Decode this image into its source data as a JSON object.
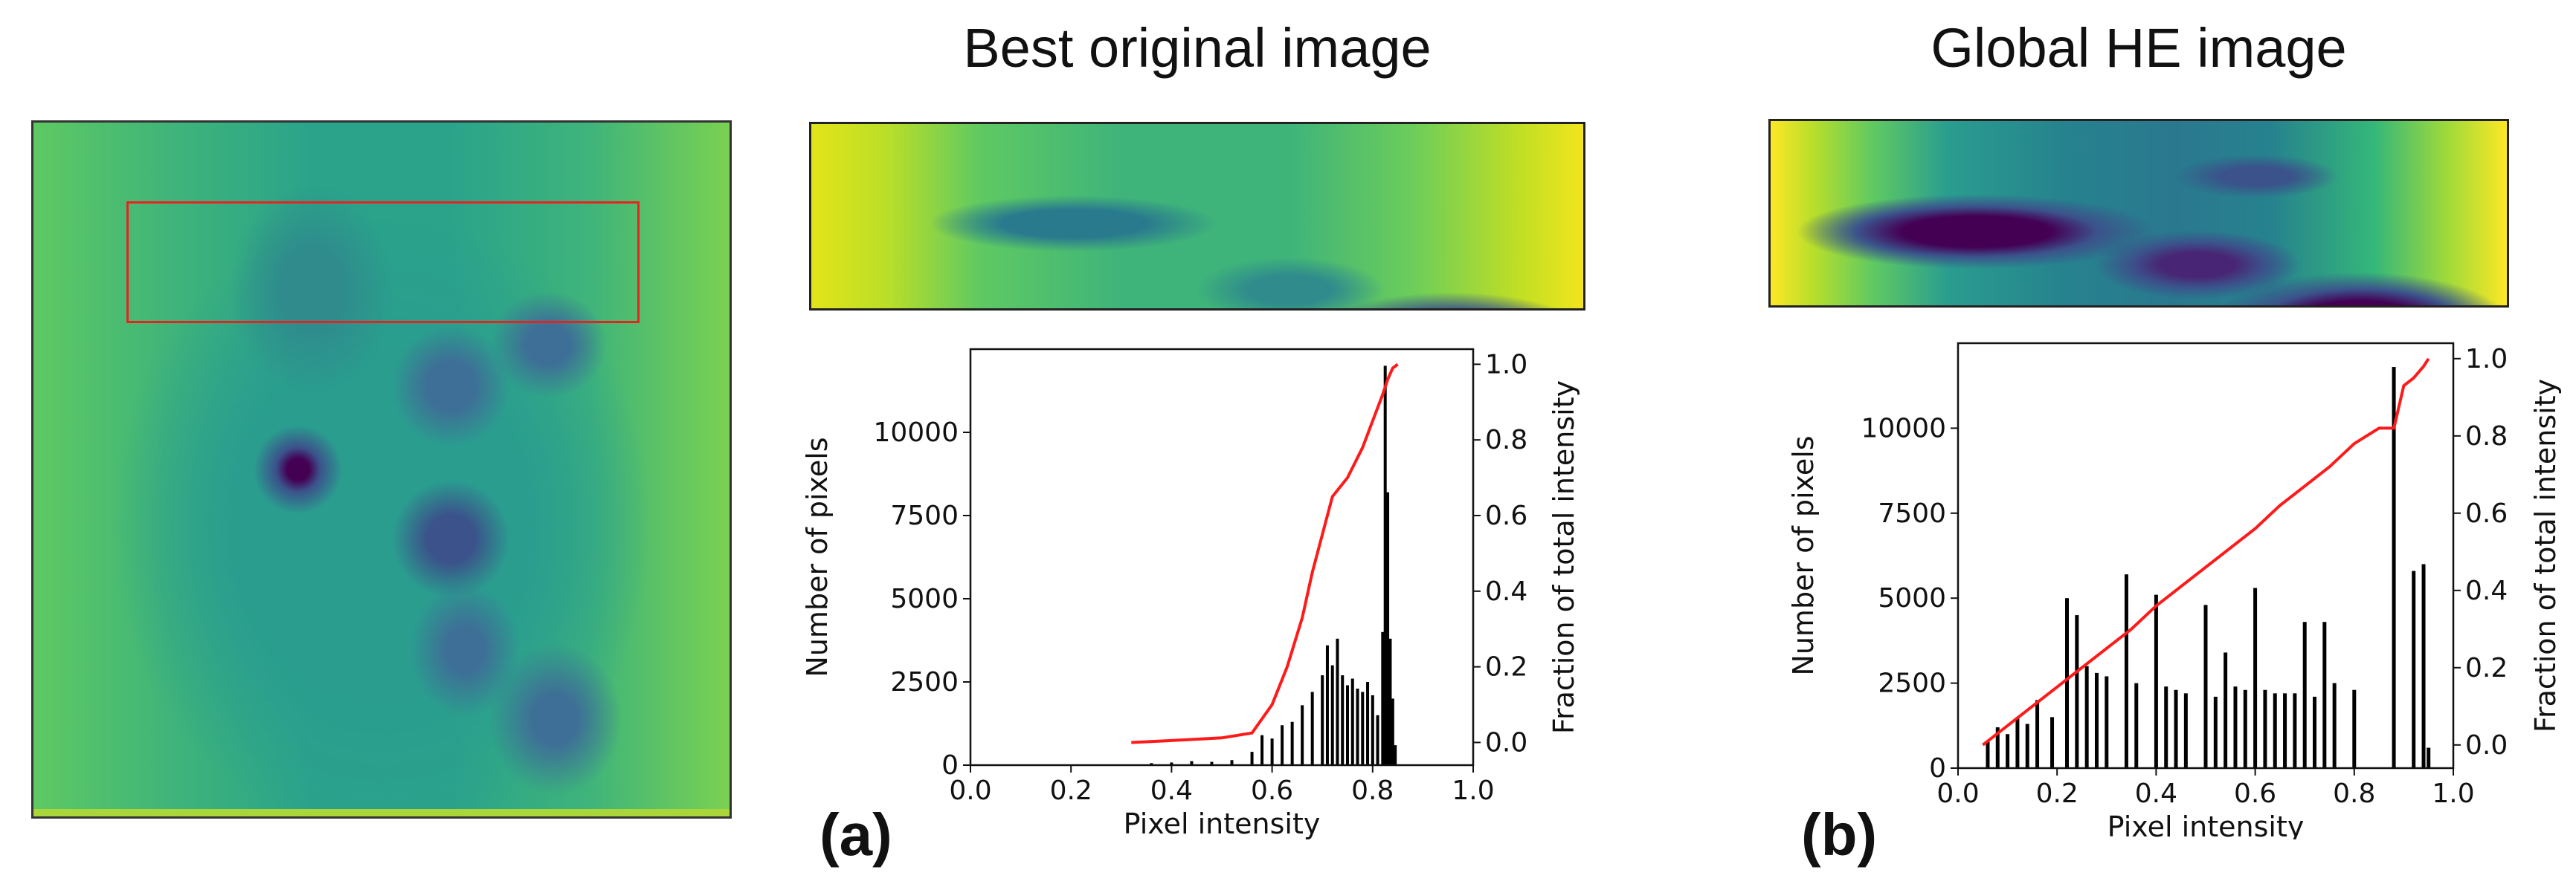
{
  "titles": {
    "a": "Best original image",
    "b": "Global HE image"
  },
  "panel_labels": {
    "a": "(a)",
    "b": "(b)"
  },
  "colors": {
    "cumulative_line": "#ff1a1a",
    "bars": "#000000",
    "roi_box": "#e8231f",
    "viridis_yellow": "#dfe318",
    "viridis_green": "#7ad151",
    "viridis_teal": "#2a9d8f",
    "viridis_blue": "#31688e",
    "viridis_purple": "#440154"
  },
  "chart_data": [
    {
      "id": "a",
      "type": "bar",
      "xlabel": "Pixel intensity",
      "ylabel": "Number of pixels",
      "y2label": "Fraction of total intensity",
      "xlim": [
        0.0,
        1.0
      ],
      "ylim": [
        0,
        12500
      ],
      "y2lim": [
        -0.06,
        1.04
      ],
      "xticks": [
        "0.0",
        "0.2",
        "0.4",
        "0.6",
        "0.8",
        "1.0"
      ],
      "yticks": [
        "0",
        "2500",
        "5000",
        "7500",
        "10000"
      ],
      "y2ticks": [
        "0.0",
        "0.2",
        "0.4",
        "0.6",
        "0.8",
        "1.0"
      ],
      "grid": false,
      "histogram": {
        "name": "Number of pixels",
        "x": [
          0.36,
          0.4,
          0.44,
          0.48,
          0.52,
          0.56,
          0.58,
          0.6,
          0.62,
          0.64,
          0.66,
          0.68,
          0.7,
          0.71,
          0.72,
          0.73,
          0.74,
          0.75,
          0.76,
          0.77,
          0.78,
          0.79,
          0.8,
          0.81,
          0.82,
          0.825,
          0.83,
          0.835,
          0.84,
          0.845
        ],
        "values": [
          60,
          80,
          120,
          100,
          150,
          400,
          900,
          800,
          1200,
          1300,
          1800,
          2200,
          2700,
          3600,
          3000,
          3800,
          2700,
          2400,
          2600,
          2300,
          2200,
          2500,
          2100,
          1500,
          4000,
          12000,
          8200,
          3800,
          2000,
          600
        ]
      },
      "cumulative": {
        "name": "Fraction of total intensity",
        "x": [
          0.32,
          0.4,
          0.5,
          0.56,
          0.6,
          0.63,
          0.66,
          0.68,
          0.7,
          0.72,
          0.75,
          0.78,
          0.8,
          0.82,
          0.83,
          0.84,
          0.85
        ],
        "values": [
          0.0,
          0.005,
          0.012,
          0.025,
          0.1,
          0.2,
          0.33,
          0.45,
          0.55,
          0.65,
          0.7,
          0.78,
          0.85,
          0.92,
          0.96,
          0.99,
          1.0
        ]
      }
    },
    {
      "id": "b",
      "type": "bar",
      "xlabel": "Pixel intensity",
      "ylabel": "Number of pixels",
      "y2label": "Fraction of total intensity",
      "xlim": [
        0.0,
        1.0
      ],
      "ylim": [
        0,
        12500
      ],
      "y2lim": [
        -0.06,
        1.04
      ],
      "xticks": [
        "0.0",
        "0.2",
        "0.4",
        "0.6",
        "0.8",
        "1.0"
      ],
      "yticks": [
        "0",
        "2500",
        "5000",
        "7500",
        "10000"
      ],
      "y2ticks": [
        "0.0",
        "0.2",
        "0.4",
        "0.6",
        "0.8",
        "1.0"
      ],
      "grid": false,
      "histogram": {
        "name": "Number of pixels",
        "x": [
          0.06,
          0.08,
          0.1,
          0.12,
          0.14,
          0.16,
          0.19,
          0.22,
          0.24,
          0.26,
          0.28,
          0.3,
          0.34,
          0.36,
          0.4,
          0.42,
          0.44,
          0.46,
          0.5,
          0.52,
          0.54,
          0.56,
          0.58,
          0.6,
          0.62,
          0.64,
          0.66,
          0.68,
          0.7,
          0.72,
          0.74,
          0.76,
          0.8,
          0.88,
          0.92,
          0.94,
          0.95
        ],
        "values": [
          800,
          1200,
          1000,
          1500,
          1300,
          2000,
          1500,
          5000,
          4500,
          3000,
          2800,
          2700,
          5700,
          2500,
          5100,
          2400,
          2300,
          2200,
          4800,
          2100,
          3400,
          2400,
          2300,
          5300,
          2300,
          2200,
          2200,
          2200,
          4300,
          2100,
          4300,
          2500,
          2300,
          11800,
          5800,
          6000,
          600
        ]
      },
      "cumulative": {
        "name": "Fraction of total intensity",
        "x": [
          0.05,
          0.1,
          0.15,
          0.2,
          0.25,
          0.3,
          0.35,
          0.4,
          0.45,
          0.5,
          0.55,
          0.6,
          0.65,
          0.7,
          0.75,
          0.8,
          0.85,
          0.88,
          0.9,
          0.92,
          0.94,
          0.95
        ],
        "values": [
          0.0,
          0.05,
          0.1,
          0.15,
          0.2,
          0.25,
          0.3,
          0.36,
          0.41,
          0.46,
          0.51,
          0.56,
          0.62,
          0.67,
          0.72,
          0.78,
          0.82,
          0.82,
          0.93,
          0.95,
          0.98,
          1.0
        ]
      }
    }
  ]
}
